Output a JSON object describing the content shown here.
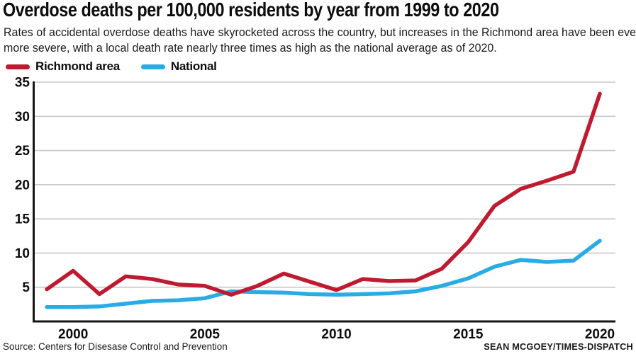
{
  "header": {
    "title": "Overdose deaths per 100,000 residents by year from 1999 to 2020",
    "subtitle": "Rates of accidental overdose deaths have skyrocketed across the country, but increases in the Richmond area have been even more severe, with a local death rate nearly three times as high as the national average as of 2020.",
    "subtitle_lines": [
      "Rates of accidental overdose deaths have skyrocketed across the country, but increases in the Richmond area have been even",
      "more severe, with a local death rate nearly three times as high as the national average as of 2020."
    ]
  },
  "legend": [
    {
      "label": "Richmond area",
      "color": "#bf1a2f"
    },
    {
      "label": "National",
      "color": "#29ace3"
    }
  ],
  "chart_data": {
    "type": "line",
    "x": [
      1999,
      2000,
      2001,
      2002,
      2003,
      2004,
      2005,
      2006,
      2007,
      2008,
      2009,
      2010,
      2011,
      2012,
      2013,
      2014,
      2015,
      2016,
      2017,
      2018,
      2019,
      2020
    ],
    "series": [
      {
        "name": "Richmond area",
        "color": "#bf1a2f",
        "values": [
          4.7,
          7.4,
          4.0,
          6.6,
          6.2,
          5.4,
          5.2,
          3.9,
          5.2,
          7.0,
          5.8,
          4.6,
          6.2,
          5.9,
          6.0,
          7.7,
          11.6,
          16.9,
          19.4,
          20.6,
          21.9,
          33.3
        ]
      },
      {
        "name": "National",
        "color": "#29ace3",
        "values": [
          2.1,
          2.1,
          2.2,
          2.6,
          3.0,
          3.1,
          3.4,
          4.4,
          4.3,
          4.2,
          4.0,
          3.9,
          4.0,
          4.1,
          4.4,
          5.2,
          6.3,
          8.0,
          9.0,
          8.7,
          8.9,
          11.8
        ]
      }
    ],
    "ylim": [
      0,
      35
    ],
    "yticks": [
      5,
      10,
      15,
      20,
      25,
      30,
      35
    ],
    "xticks": [
      2000,
      2005,
      2010,
      2015,
      2020
    ],
    "grid": true,
    "legend_position": "top-left",
    "title": "Overdose deaths per 100,000 residents by year from 1999 to 2020",
    "xlabel": "",
    "ylabel": ""
  },
  "footer": {
    "source": "Source: Centers for Disesase Control and Prevention",
    "credit": "SEAN MCGOEY/TIMES-DISPATCH"
  },
  "colors": {
    "richmond": "#bf1a2f",
    "national": "#29ace3",
    "grid": "#c9c9c9",
    "axis": "#141414",
    "text": "#0d0d0d"
  }
}
